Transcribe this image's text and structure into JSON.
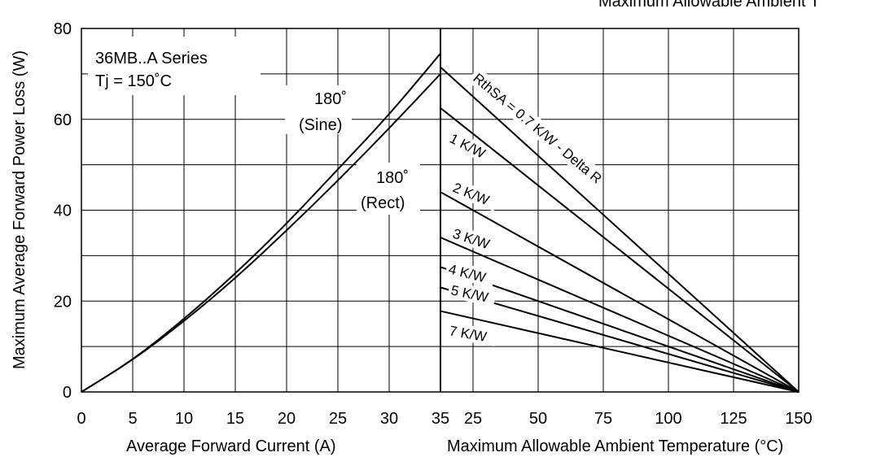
{
  "header": {
    "cut_title": "Maximum Allowable Ambient T"
  },
  "chart_data": {
    "type": "line",
    "title": "",
    "ylabel": "Maximum Average Forward Power Loss (W)",
    "ylim": [
      0,
      80
    ],
    "y_ticks": [
      "0",
      "20",
      "40",
      "60",
      "80"
    ],
    "grid": true,
    "left_panel": {
      "xlabel": "Average Forward Current (A)",
      "xlim": [
        0,
        35
      ],
      "x_ticks": [
        "0",
        "5",
        "10",
        "15",
        "20",
        "25",
        "30",
        "35"
      ],
      "series": [
        {
          "name": "180° (Sine)",
          "x": [
            0,
            5,
            10,
            15,
            20,
            25,
            30,
            35
          ],
          "y": [
            0,
            7,
            16,
            26,
            37,
            49,
            61,
            74.5
          ]
        },
        {
          "name": "180° (Rect)",
          "x": [
            0,
            5,
            10,
            15,
            20,
            25,
            30,
            35
          ],
          "y": [
            0,
            7,
            15.5,
            25,
            35.5,
            46.5,
            58,
            70
          ]
        }
      ],
      "curve_labels": [
        {
          "line1": "180˚",
          "line2": "(Sine)"
        },
        {
          "line1": "180˚",
          "line2": "(Rect)"
        }
      ]
    },
    "right_panel": {
      "xlabel": "Maximum Allowable Ambient Temperature (°C)",
      "xlim": [
        25,
        150
      ],
      "x_ticks": [
        "35",
        "25",
        "50",
        "75",
        "100",
        "125",
        "150"
      ],
      "x_tick_values": [
        12.5,
        25,
        50,
        75,
        100,
        125,
        150
      ],
      "series": [
        {
          "name": "RthSA = 0.7 K/W - Delta R",
          "x": [
            12.5,
            150
          ],
          "y": [
            71.5,
            0
          ]
        },
        {
          "name": "1 K/W",
          "x": [
            12.5,
            150
          ],
          "y": [
            62.5,
            0
          ]
        },
        {
          "name": "2 K/W",
          "x": [
            12.5,
            150
          ],
          "y": [
            44,
            0
          ]
        },
        {
          "name": "3 K/W",
          "x": [
            12.5,
            150
          ],
          "y": [
            34,
            0
          ]
        },
        {
          "name": "4 K/W",
          "x": [
            12.5,
            150
          ],
          "y": [
            27.5,
            0
          ]
        },
        {
          "name": "5 K/W",
          "x": [
            12.5,
            150
          ],
          "y": [
            23,
            0
          ]
        },
        {
          "name": "7 K/W",
          "x": [
            12.5,
            150
          ],
          "y": [
            17.8,
            0
          ]
        }
      ]
    },
    "annotations": {
      "series_name": "36MB..A Series",
      "tj": "Tj = 150˚C"
    }
  }
}
